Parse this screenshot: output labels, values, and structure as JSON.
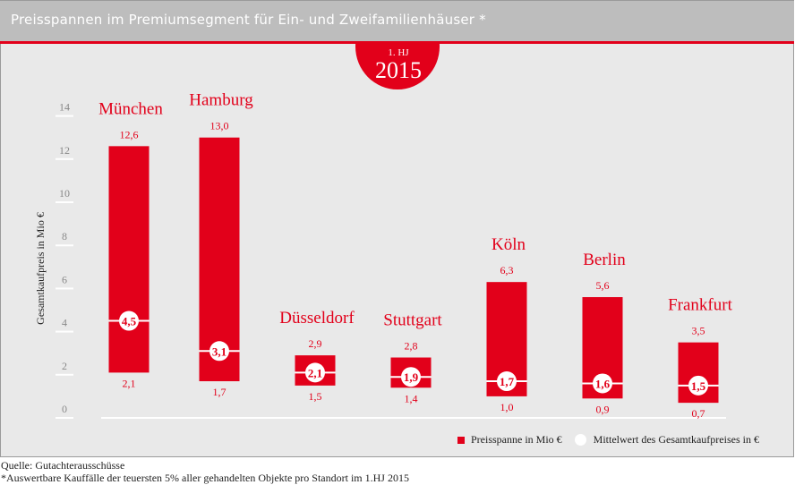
{
  "header": {
    "title": "Preisspannen im Premiumsegment für Ein- und Zweifamilienhäuser *",
    "badge_sub": "1. HJ",
    "badge_year": "2015"
  },
  "colors": {
    "accent": "#e2001a",
    "header_bg": "#bdbdbd",
    "plot_bg": "#e9e9e9",
    "tick_label": "#888888"
  },
  "chart_data": {
    "type": "bar",
    "subtype": "floating-range",
    "title": "Preisspannen im Premiumsegment für Ein- und Zweifamilienhäuser *",
    "ylabel": "Gesamtkaufpreis in Mio €",
    "xlabel": "",
    "ylim": [
      0,
      14
    ],
    "yticks": [
      "0",
      "2",
      "4",
      "6",
      "8",
      "10",
      "12",
      "14"
    ],
    "categories": [
      "München",
      "Hamburg",
      "Düsseldorf",
      "Stuttgart",
      "Köln",
      "Berlin",
      "Frankfurt"
    ],
    "series": [
      {
        "name": "Preisspanne in Mio €",
        "min": [
          2.1,
          1.7,
          1.5,
          1.4,
          1.0,
          0.9,
          0.7
        ],
        "max": [
          12.6,
          13.0,
          2.9,
          2.8,
          6.3,
          5.6,
          3.5
        ]
      },
      {
        "name": "Mittelwert des Gesamtkaufpreises in €",
        "values": [
          4.5,
          3.1,
          2.1,
          1.9,
          1.7,
          1.6,
          1.5
        ]
      }
    ],
    "min_labels": [
      "2,1",
      "1,7",
      "1,5",
      "1,4",
      "1,0",
      "0,9",
      "0,7"
    ],
    "max_labels": [
      "12,6",
      "13,0",
      "2,9",
      "2,8",
      "6,3",
      "5,6",
      "3,5"
    ],
    "mean_labels": [
      "4,5",
      "3,1",
      "2,1",
      "1,9",
      "1,7",
      "1,6",
      "1,5"
    ],
    "legend": [
      "Preisspanne in Mio €",
      "Mittelwert des Gesamtkaufpreises in €"
    ],
    "legend_position": "bottom-right",
    "grid": false
  },
  "footer": {
    "source": "Quelle: Gutachterausschüsse",
    "note": "*Auswertbare Kauffälle der teuersten 5% aller gehandelten Objekte pro Standort im 1.HJ 2015"
  }
}
